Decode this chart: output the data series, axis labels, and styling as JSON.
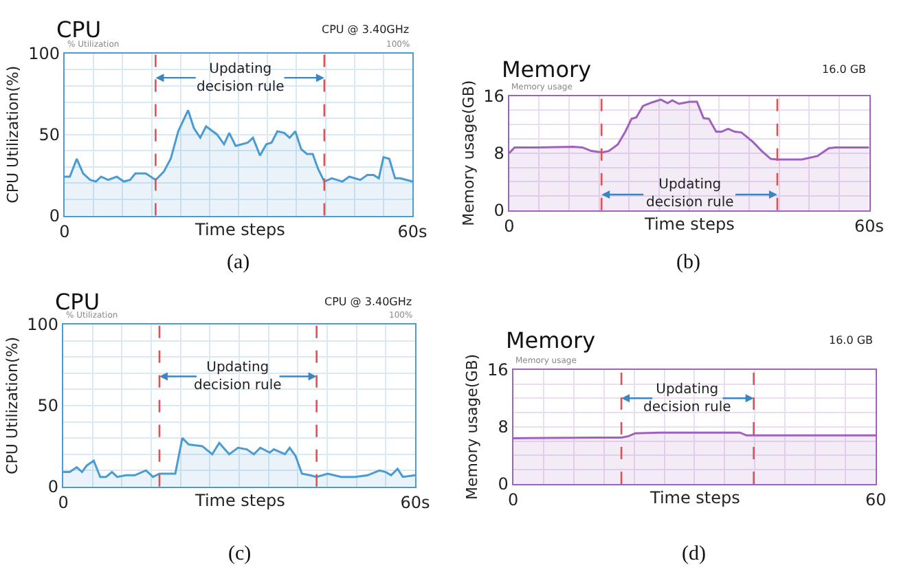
{
  "chart_data": [
    {
      "type": "area",
      "title": "CPU",
      "subtitle": "CPU @ 3.40GHz",
      "xlabel": "Time steps",
      "ylabel": "CPU Utilization(%)",
      "annotations": [
        "% Utilization",
        "100%",
        {
          "text": "Updating\ndecision rule",
          "x": 15.7,
          "y": 85
        },
        "(a)"
      ],
      "series": [
        {
          "color": "#4a9bd1",
          "x": [
            0,
            0.9,
            2.1,
            3.2,
            4.4,
            5.4,
            6.3,
            7.5,
            9.0,
            10.2,
            11.3,
            12.2,
            14.0,
            15.7,
            17.1,
            18.3,
            19.6,
            21.3,
            22.3,
            23.4,
            24.4,
            26.3,
            27.5,
            28.4,
            29.5,
            30.6,
            31.6,
            32.5,
            33.7,
            34.8,
            35.7,
            36.7,
            37.9,
            38.8,
            39.8,
            40.8,
            41.8,
            42.8,
            43.7,
            44.8,
            46.1,
            47.9,
            49.1,
            51.0,
            52.2,
            53.3,
            54.2,
            55.0,
            56.0,
            57.0,
            57.9,
            60
          ],
          "values": [
            24,
            24,
            35,
            26,
            22,
            21,
            24,
            22,
            24,
            21,
            22,
            26,
            26,
            22,
            27,
            35,
            52,
            65,
            54,
            48,
            55,
            50,
            44,
            51,
            43,
            44,
            45,
            48,
            37,
            44,
            45,
            52,
            51,
            48,
            52,
            41,
            38,
            38,
            29,
            21,
            23,
            21,
            24,
            22,
            25,
            25,
            23,
            36,
            35,
            23,
            23,
            21
          ]
        }
      ],
      "xlim": [
        0,
        60
      ],
      "ylim": [
        0,
        100
      ],
      "xticks": [
        0,
        {
          "value": 5,
          "label": null
        },
        {
          "value": 10,
          "label": null
        },
        {
          "value": 15,
          "label": null
        },
        {
          "value": 20,
          "label": null
        },
        {
          "value": 25,
          "label": null
        },
        {
          "value": 30,
          "label": null
        },
        {
          "value": 35,
          "label": null
        },
        {
          "value": 40,
          "label": null
        },
        {
          "value": 45,
          "label": null
        },
        {
          "value": 50,
          "label": null
        },
        {
          "value": 55,
          "label": null
        },
        {
          "value": 60,
          "label": "60s"
        }
      ],
      "yticks": [
        0,
        {
          "value": 10,
          "label": null
        },
        {
          "value": 20,
          "label": null
        },
        {
          "value": 30,
          "label": null
        },
        {
          "value": 40,
          "label": null
        },
        50,
        {
          "value": 60,
          "label": null
        },
        {
          "value": 70,
          "label": null
        },
        {
          "value": 80,
          "label": null
        },
        {
          "value": 90,
          "label": null
        },
        100
      ],
      "ref_lines": [
        {
          "axis": "x",
          "value": 15.7,
          "color": "#e05050",
          "line_style": "dashed"
        },
        {
          "axis": "x",
          "value": 44.8,
          "color": "#e05050",
          "line_style": "dashed"
        }
      ],
      "grid": true
    },
    {
      "type": "area",
      "title": "Memory",
      "subtitle": "16.0 GB",
      "xlabel": "Time steps",
      "ylabel": "Memory usage(GB)",
      "annotations": [
        "Memory usage",
        {
          "text": "Updating\ndecision rule",
          "x": 15.4,
          "y": 2.2
        },
        "(b)"
      ],
      "series": [
        {
          "color": "#a060c0",
          "x": [
            0,
            0.9,
            4.8,
            10.7,
            12.2,
            13.7,
            15.5,
            16.6,
            18.1,
            19.3,
            20.4,
            21.2,
            22.3,
            23.8,
            25.3,
            26.4,
            27.2,
            28.3,
            30.1,
            31.3,
            32.4,
            33.3,
            34.5,
            35.4,
            36.5,
            37.6,
            38.7,
            40.6,
            42.1,
            43.6,
            44.7,
            48.8,
            51.4,
            53.3,
            54.4,
            60
          ],
          "values": [
            8.0,
            8.8,
            8.8,
            8.9,
            8.8,
            8.3,
            8.1,
            8.3,
            9.2,
            10.9,
            12.8,
            13.0,
            14.6,
            15.1,
            15.5,
            15.0,
            15.4,
            14.9,
            15.2,
            15.2,
            12.9,
            12.8,
            11.0,
            11.0,
            11.4,
            11.0,
            10.9,
            9.6,
            8.3,
            7.2,
            7.1,
            7.1,
            7.6,
            8.7,
            8.8,
            8.8
          ]
        }
      ],
      "xlim": [
        0,
        60
      ],
      "ylim": [
        0,
        16
      ],
      "xticks": [
        0,
        {
          "value": 5,
          "label": null
        },
        {
          "value": 10,
          "label": null
        },
        {
          "value": 15,
          "label": null
        },
        {
          "value": 20,
          "label": null
        },
        {
          "value": 25,
          "label": null
        },
        {
          "value": 30,
          "label": null
        },
        {
          "value": 35,
          "label": null
        },
        {
          "value": 40,
          "label": null
        },
        {
          "value": 45,
          "label": null
        },
        {
          "value": 50,
          "label": null
        },
        {
          "value": 55,
          "label": null
        },
        {
          "value": 60,
          "label": "60s"
        }
      ],
      "yticks": [
        0,
        {
          "value": 2,
          "label": null
        },
        {
          "value": 4,
          "label": null
        },
        {
          "value": 6,
          "label": null
        },
        8,
        {
          "value": 10,
          "label": null
        },
        {
          "value": 12,
          "label": null
        },
        {
          "value": 14,
          "label": null
        },
        16
      ],
      "ref_lines": [
        {
          "axis": "x",
          "value": 15.4,
          "color": "#e05050",
          "line_style": "dashed"
        },
        {
          "axis": "x",
          "value": 44.7,
          "color": "#e05050",
          "line_style": "dashed"
        }
      ],
      "grid": true
    },
    {
      "type": "area",
      "title": "CPU",
      "subtitle": "CPU @ 3.40GHz",
      "xlabel": "Time steps",
      "ylabel": "CPU Utilization(%)",
      "annotations": [
        "% Utilization",
        "100%",
        {
          "text": "Updating\ndecision rule",
          "x": 16.4,
          "y": 68
        },
        "(c)"
      ],
      "series": [
        {
          "color": "#4a9bd1",
          "x": [
            0,
            1.1,
            2.3,
            3.2,
            4.0,
            5.2,
            6.3,
            7.3,
            8.3,
            9.2,
            10.7,
            12.2,
            14.1,
            15.3,
            16.4,
            19.1,
            20.3,
            21.4,
            23.7,
            25.4,
            26.6,
            28.3,
            29.8,
            31.3,
            32.5,
            33.6,
            35.2,
            35.9,
            37.8,
            38.6,
            39.6,
            40.7,
            42.1,
            43.2,
            45.1,
            47.4,
            49.7,
            51.9,
            53.9,
            55.0,
            55.9,
            57.0,
            57.9,
            60
          ],
          "values": [
            9,
            9,
            12,
            9,
            13,
            16,
            6,
            6,
            9,
            6,
            7,
            7,
            10,
            6,
            8,
            8,
            30,
            26,
            25,
            20,
            27,
            20,
            24,
            23,
            20,
            24,
            21,
            23,
            20,
            24,
            19,
            8,
            7,
            6,
            8,
            6,
            6,
            7,
            10,
            9,
            7,
            11,
            6,
            7
          ]
        }
      ],
      "xlim": [
        0,
        60
      ],
      "ylim": [
        0,
        100
      ],
      "xticks": [
        0,
        {
          "value": 5,
          "label": null
        },
        {
          "value": 10,
          "label": null
        },
        {
          "value": 15,
          "label": null
        },
        {
          "value": 20,
          "label": null
        },
        {
          "value": 25,
          "label": null
        },
        {
          "value": 30,
          "label": null
        },
        {
          "value": 35,
          "label": null
        },
        {
          "value": 40,
          "label": null
        },
        {
          "value": 45,
          "label": null
        },
        {
          "value": 50,
          "label": null
        },
        {
          "value": 55,
          "label": null
        },
        {
          "value": 60,
          "label": "60s"
        }
      ],
      "yticks": [
        0,
        {
          "value": 10,
          "label": null
        },
        {
          "value": 20,
          "label": null
        },
        {
          "value": 30,
          "label": null
        },
        {
          "value": 40,
          "label": null
        },
        50,
        {
          "value": 60,
          "label": null
        },
        {
          "value": 70,
          "label": null
        },
        {
          "value": 80,
          "label": null
        },
        {
          "value": 90,
          "label": null
        },
        100
      ],
      "ref_lines": [
        {
          "axis": "x",
          "value": 16.4,
          "color": "#e05050",
          "line_style": "dashed"
        },
        {
          "axis": "x",
          "value": 43.2,
          "color": "#e05050",
          "line_style": "dashed"
        }
      ],
      "grid": true
    },
    {
      "type": "area",
      "title": "Memory",
      "subtitle": "16.0 GB",
      "xlabel": "Time steps",
      "ylabel": "Memory usage(GB)",
      "annotations": [
        "Memory usage",
        {
          "text": "Updating\ndecision rule",
          "x": 17.9,
          "y": 12
        },
        "(d)"
      ],
      "series": [
        {
          "color": "#a060c0",
          "x": [
            0,
            14.0,
            17.9,
            19.1,
            20.2,
            24.3,
            37.5,
            38.6,
            60
          ],
          "values": [
            6.4,
            6.5,
            6.5,
            6.7,
            7.1,
            7.2,
            7.2,
            6.8,
            6.8
          ]
        }
      ],
      "xlim": [
        0,
        60
      ],
      "ylim": [
        0,
        16
      ],
      "xticks": [
        0,
        {
          "value": 5,
          "label": null
        },
        {
          "value": 10,
          "label": null
        },
        {
          "value": 15,
          "label": null
        },
        {
          "value": 20,
          "label": null
        },
        {
          "value": 25,
          "label": null
        },
        {
          "value": 30,
          "label": null
        },
        {
          "value": 35,
          "label": null
        },
        {
          "value": 40,
          "label": null
        },
        {
          "value": 45,
          "label": null
        },
        {
          "value": 50,
          "label": null
        },
        {
          "value": 55,
          "label": null
        },
        60
      ],
      "yticks": [
        0,
        {
          "value": 2,
          "label": null
        },
        {
          "value": 4,
          "label": null
        },
        {
          "value": 6,
          "label": null
        },
        8,
        {
          "value": 10,
          "label": null
        },
        {
          "value": 12,
          "label": null
        },
        {
          "value": 14,
          "label": null
        },
        16
      ],
      "ref_lines": [
        {
          "axis": "x",
          "value": 17.9,
          "color": "#e05050",
          "line_style": "dashed"
        },
        {
          "axis": "x",
          "value": 39.8,
          "color": "#e05050",
          "line_style": "dashed"
        }
      ],
      "grid": true
    }
  ]
}
